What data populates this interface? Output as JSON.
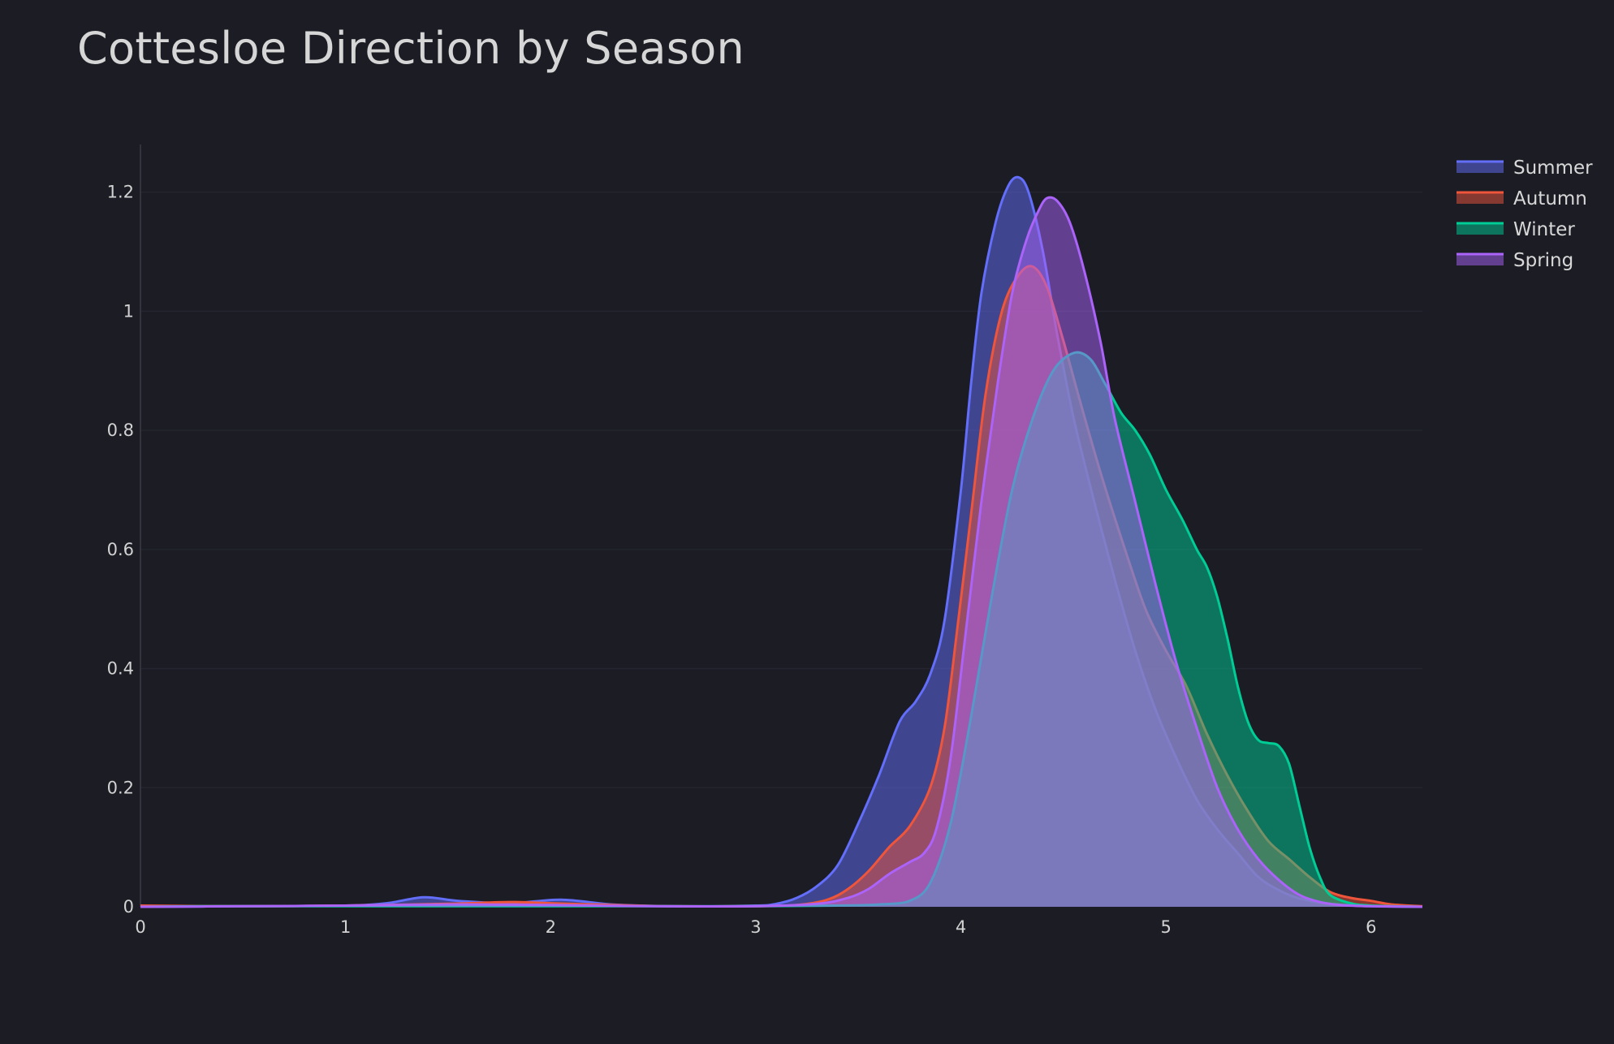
{
  "chart_data": {
    "type": "area",
    "title": "Cottesloe Direction by Season",
    "xlabel": "",
    "ylabel": "",
    "xlim": [
      0,
      6.25
    ],
    "ylim": [
      0,
      1.28
    ],
    "x_ticks": [
      0,
      1,
      2,
      3,
      4,
      5,
      6
    ],
    "y_ticks": [
      {
        "value": 0,
        "label": "0"
      },
      {
        "value": 0.2,
        "label": "0.2"
      },
      {
        "value": 0.4,
        "label": "0.4"
      },
      {
        "value": 0.6,
        "label": "0.6"
      },
      {
        "value": 0.8,
        "label": "0.8"
      },
      {
        "value": 1,
        "label": "1"
      },
      {
        "value": 1.2,
        "label": "1.2"
      }
    ],
    "grid": true,
    "legend_position": "top-right",
    "series": [
      {
        "name": "Summer",
        "color": "#636efa",
        "fill": "rgba(99,110,250,0.5)",
        "points": [
          [
            0,
            0
          ],
          [
            0.5,
            0.001
          ],
          [
            1,
            0.002
          ],
          [
            1.2,
            0.006
          ],
          [
            1.38,
            0.016
          ],
          [
            1.55,
            0.01
          ],
          [
            1.8,
            0.006
          ],
          [
            2.05,
            0.012
          ],
          [
            2.3,
            0.004
          ],
          [
            2.6,
            0.001
          ],
          [
            3,
            0.002
          ],
          [
            3.1,
            0.005
          ],
          [
            3.2,
            0.015
          ],
          [
            3.3,
            0.035
          ],
          [
            3.4,
            0.07
          ],
          [
            3.5,
            0.14
          ],
          [
            3.6,
            0.22
          ],
          [
            3.7,
            0.31
          ],
          [
            3.78,
            0.345
          ],
          [
            3.85,
            0.39
          ],
          [
            3.92,
            0.48
          ],
          [
            4.0,
            0.7
          ],
          [
            4.05,
            0.88
          ],
          [
            4.1,
            1.03
          ],
          [
            4.17,
            1.15
          ],
          [
            4.23,
            1.21
          ],
          [
            4.28,
            1.225
          ],
          [
            4.33,
            1.2
          ],
          [
            4.4,
            1.1
          ],
          [
            4.47,
            0.96
          ],
          [
            4.55,
            0.82
          ],
          [
            4.65,
            0.68
          ],
          [
            4.75,
            0.55
          ],
          [
            4.85,
            0.43
          ],
          [
            4.95,
            0.33
          ],
          [
            5.05,
            0.25
          ],
          [
            5.15,
            0.18
          ],
          [
            5.25,
            0.13
          ],
          [
            5.35,
            0.09
          ],
          [
            5.45,
            0.05
          ],
          [
            5.55,
            0.028
          ],
          [
            5.65,
            0.014
          ],
          [
            5.8,
            0.005
          ],
          [
            6.0,
            0.001
          ],
          [
            6.25,
            0
          ]
        ]
      },
      {
        "name": "Autumn",
        "color": "#ef553b",
        "fill": "rgba(239,85,59,0.5)",
        "points": [
          [
            0,
            0.002
          ],
          [
            0.5,
            0.001
          ],
          [
            1,
            0.002
          ],
          [
            1.5,
            0.005
          ],
          [
            1.8,
            0.008
          ],
          [
            2.0,
            0.006
          ],
          [
            2.3,
            0.003
          ],
          [
            2.6,
            0.001
          ],
          [
            3,
            0.001
          ],
          [
            3.2,
            0.003
          ],
          [
            3.35,
            0.012
          ],
          [
            3.45,
            0.03
          ],
          [
            3.55,
            0.06
          ],
          [
            3.65,
            0.1
          ],
          [
            3.75,
            0.135
          ],
          [
            3.85,
            0.2
          ],
          [
            3.92,
            0.3
          ],
          [
            3.98,
            0.46
          ],
          [
            4.05,
            0.66
          ],
          [
            4.12,
            0.86
          ],
          [
            4.2,
            1.0
          ],
          [
            4.28,
            1.06
          ],
          [
            4.35,
            1.075
          ],
          [
            4.42,
            1.04
          ],
          [
            4.5,
            0.95
          ],
          [
            4.58,
            0.85
          ],
          [
            4.68,
            0.73
          ],
          [
            4.8,
            0.6
          ],
          [
            4.9,
            0.5
          ],
          [
            5.0,
            0.43
          ],
          [
            5.1,
            0.37
          ],
          [
            5.2,
            0.29
          ],
          [
            5.3,
            0.22
          ],
          [
            5.4,
            0.16
          ],
          [
            5.5,
            0.11
          ],
          [
            5.6,
            0.08
          ],
          [
            5.7,
            0.05
          ],
          [
            5.8,
            0.025
          ],
          [
            5.9,
            0.015
          ],
          [
            6.0,
            0.01
          ],
          [
            6.1,
            0.004
          ],
          [
            6.25,
            0.001
          ]
        ]
      },
      {
        "name": "Winter",
        "color": "#00cc96",
        "fill": "rgba(0,204,150,0.5)",
        "points": [
          [
            0,
            0
          ],
          [
            0.3,
            0.001
          ],
          [
            0.6,
            0.001
          ],
          [
            1,
            0.001
          ],
          [
            1.5,
            0.001
          ],
          [
            2,
            0.001
          ],
          [
            2.5,
            0.001
          ],
          [
            3,
            0.001
          ],
          [
            3.4,
            0.002
          ],
          [
            3.6,
            0.004
          ],
          [
            3.75,
            0.01
          ],
          [
            3.85,
            0.04
          ],
          [
            3.95,
            0.14
          ],
          [
            4.05,
            0.32
          ],
          [
            4.15,
            0.52
          ],
          [
            4.25,
            0.7
          ],
          [
            4.35,
            0.82
          ],
          [
            4.45,
            0.9
          ],
          [
            4.55,
            0.93
          ],
          [
            4.63,
            0.92
          ],
          [
            4.7,
            0.88
          ],
          [
            4.78,
            0.83
          ],
          [
            4.85,
            0.8
          ],
          [
            4.92,
            0.76
          ],
          [
            5.0,
            0.7
          ],
          [
            5.08,
            0.65
          ],
          [
            5.15,
            0.6
          ],
          [
            5.2,
            0.57
          ],
          [
            5.25,
            0.52
          ],
          [
            5.3,
            0.45
          ],
          [
            5.35,
            0.37
          ],
          [
            5.4,
            0.31
          ],
          [
            5.45,
            0.28
          ],
          [
            5.5,
            0.275
          ],
          [
            5.55,
            0.27
          ],
          [
            5.6,
            0.24
          ],
          [
            5.65,
            0.17
          ],
          [
            5.7,
            0.1
          ],
          [
            5.75,
            0.05
          ],
          [
            5.8,
            0.02
          ],
          [
            5.9,
            0.006
          ],
          [
            6.0,
            0.002
          ],
          [
            6.25,
            0
          ]
        ]
      },
      {
        "name": "Spring",
        "color": "#ab63fa",
        "fill": "rgba(171,99,250,0.5)",
        "points": [
          [
            0,
            0
          ],
          [
            0.5,
            0.001
          ],
          [
            1,
            0.002
          ],
          [
            1.5,
            0.004
          ],
          [
            2,
            0.003
          ],
          [
            2.5,
            0.001
          ],
          [
            3,
            0.001
          ],
          [
            3.3,
            0.005
          ],
          [
            3.45,
            0.015
          ],
          [
            3.55,
            0.03
          ],
          [
            3.65,
            0.055
          ],
          [
            3.75,
            0.075
          ],
          [
            3.82,
            0.09
          ],
          [
            3.88,
            0.13
          ],
          [
            3.95,
            0.25
          ],
          [
            4.02,
            0.45
          ],
          [
            4.1,
            0.68
          ],
          [
            4.18,
            0.88
          ],
          [
            4.25,
            1.03
          ],
          [
            4.32,
            1.12
          ],
          [
            4.38,
            1.17
          ],
          [
            4.42,
            1.19
          ],
          [
            4.47,
            1.185
          ],
          [
            4.53,
            1.15
          ],
          [
            4.6,
            1.07
          ],
          [
            4.68,
            0.95
          ],
          [
            4.75,
            0.82
          ],
          [
            4.85,
            0.68
          ],
          [
            4.95,
            0.54
          ],
          [
            5.05,
            0.41
          ],
          [
            5.15,
            0.3
          ],
          [
            5.25,
            0.2
          ],
          [
            5.35,
            0.13
          ],
          [
            5.45,
            0.08
          ],
          [
            5.55,
            0.045
          ],
          [
            5.65,
            0.02
          ],
          [
            5.75,
            0.008
          ],
          [
            5.85,
            0.003
          ],
          [
            6.0,
            0.001
          ],
          [
            6.25,
            0
          ]
        ]
      }
    ]
  }
}
